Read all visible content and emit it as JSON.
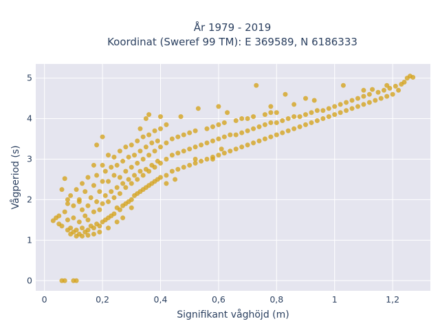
{
  "chart_data": {
    "type": "scatter",
    "title_line1": "År 1979 - 2019",
    "title_line2": "Koordinat (Sweref 99 TM): E 369589, N 6186333",
    "xlabel": "Signifikant våghöjd (m)",
    "ylabel": "Vågperiod (s)",
    "xlim": [
      -0.03,
      1.33
    ],
    "ylim": [
      -0.25,
      5.35
    ],
    "x_ticks": [
      {
        "value": 0,
        "label": "0"
      },
      {
        "value": 0.2,
        "label": "0,2"
      },
      {
        "value": 0.4,
        "label": "0,4"
      },
      {
        "value": 0.6,
        "label": "0,6"
      },
      {
        "value": 0.8,
        "label": "0,8"
      },
      {
        "value": 1,
        "label": "1"
      },
      {
        "value": 1.2,
        "label": "1,2"
      }
    ],
    "y_ticks": [
      {
        "value": 0,
        "label": "0"
      },
      {
        "value": 1,
        "label": "1"
      },
      {
        "value": 2,
        "label": "2"
      },
      {
        "value": 3,
        "label": "3"
      },
      {
        "value": 4,
        "label": "4"
      },
      {
        "value": 5,
        "label": "5"
      }
    ],
    "grid": true,
    "colors": {
      "background": "#e5e5ef",
      "grid": "#ffffff",
      "marker": "#d4a41f"
    },
    "series": [
      {
        "points": [
          [
            0.06,
            0.0
          ],
          [
            0.07,
            0.0
          ],
          [
            0.1,
            0.0
          ],
          [
            0.11,
            0.0
          ],
          [
            0.03,
            1.48
          ],
          [
            0.04,
            1.55
          ],
          [
            0.05,
            1.4
          ],
          [
            0.05,
            1.6
          ],
          [
            0.06,
            1.35
          ],
          [
            0.06,
            2.25
          ],
          [
            0.07,
            2.52
          ],
          [
            0.07,
            1.7
          ],
          [
            0.08,
            1.25
          ],
          [
            0.08,
            1.5
          ],
          [
            0.08,
            1.9
          ],
          [
            0.09,
            1.3
          ],
          [
            0.09,
            2.1
          ],
          [
            0.1,
            1.2
          ],
          [
            0.1,
            1.55
          ],
          [
            0.1,
            1.85
          ],
          [
            0.11,
            1.25
          ],
          [
            0.11,
            2.25
          ],
          [
            0.12,
            1.15
          ],
          [
            0.12,
            1.45
          ],
          [
            0.12,
            2.0
          ],
          [
            0.13,
            1.3
          ],
          [
            0.13,
            1.75
          ],
          [
            0.13,
            2.4
          ],
          [
            0.14,
            1.2
          ],
          [
            0.14,
            1.6
          ],
          [
            0.14,
            2.2
          ],
          [
            0.15,
            1.25
          ],
          [
            0.15,
            1.5
          ],
          [
            0.15,
            1.85
          ],
          [
            0.15,
            2.55
          ],
          [
            0.16,
            1.35
          ],
          [
            0.16,
            2.05
          ],
          [
            0.17,
            1.3
          ],
          [
            0.17,
            1.7
          ],
          [
            0.17,
            2.35
          ],
          [
            0.17,
            2.85
          ],
          [
            0.18,
            1.4
          ],
          [
            0.18,
            1.95
          ],
          [
            0.18,
            2.6
          ],
          [
            0.19,
            1.35
          ],
          [
            0.19,
            1.75
          ],
          [
            0.19,
            2.2
          ],
          [
            0.2,
            1.45
          ],
          [
            0.2,
            1.9
          ],
          [
            0.2,
            2.45
          ],
          [
            0.2,
            2.85
          ],
          [
            0.21,
            1.5
          ],
          [
            0.21,
            2.1
          ],
          [
            0.21,
            2.7
          ],
          [
            0.22,
            1.55
          ],
          [
            0.22,
            1.95
          ],
          [
            0.22,
            2.45
          ],
          [
            0.22,
            3.1
          ],
          [
            0.23,
            1.6
          ],
          [
            0.23,
            2.2
          ],
          [
            0.23,
            2.8
          ],
          [
            0.24,
            1.65
          ],
          [
            0.24,
            2.05
          ],
          [
            0.24,
            2.6
          ],
          [
            0.24,
            3.05
          ],
          [
            0.25,
            1.8
          ],
          [
            0.25,
            2.3
          ],
          [
            0.25,
            2.85
          ],
          [
            0.26,
            1.75
          ],
          [
            0.26,
            2.15
          ],
          [
            0.26,
            2.55
          ],
          [
            0.26,
            3.2
          ],
          [
            0.27,
            1.85
          ],
          [
            0.27,
            2.4
          ],
          [
            0.27,
            2.95
          ],
          [
            0.28,
            1.9
          ],
          [
            0.28,
            2.3
          ],
          [
            0.28,
            2.7
          ],
          [
            0.28,
            3.3
          ],
          [
            0.29,
            1.95
          ],
          [
            0.29,
            2.5
          ],
          [
            0.29,
            3.05
          ],
          [
            0.3,
            2.0
          ],
          [
            0.3,
            2.4
          ],
          [
            0.3,
            2.8
          ],
          [
            0.3,
            3.35
          ],
          [
            0.31,
            2.1
          ],
          [
            0.31,
            2.6
          ],
          [
            0.31,
            3.1
          ],
          [
            0.32,
            2.15
          ],
          [
            0.32,
            2.5
          ],
          [
            0.32,
            2.9
          ],
          [
            0.32,
            3.45
          ],
          [
            0.33,
            2.2
          ],
          [
            0.33,
            2.7
          ],
          [
            0.33,
            3.2
          ],
          [
            0.34,
            2.25
          ],
          [
            0.34,
            2.6
          ],
          [
            0.34,
            3.0
          ],
          [
            0.34,
            3.55
          ],
          [
            0.35,
            2.3
          ],
          [
            0.35,
            2.75
          ],
          [
            0.35,
            3.3
          ],
          [
            0.36,
            2.35
          ],
          [
            0.36,
            2.7
          ],
          [
            0.36,
            3.1
          ],
          [
            0.36,
            3.6
          ],
          [
            0.37,
            2.4
          ],
          [
            0.37,
            2.85
          ],
          [
            0.37,
            3.4
          ],
          [
            0.38,
            2.45
          ],
          [
            0.38,
            2.8
          ],
          [
            0.38,
            3.2
          ],
          [
            0.38,
            3.7
          ],
          [
            0.39,
            2.5
          ],
          [
            0.39,
            2.95
          ],
          [
            0.39,
            3.45
          ],
          [
            0.4,
            2.55
          ],
          [
            0.4,
            2.9
          ],
          [
            0.4,
            3.3
          ],
          [
            0.4,
            3.75
          ],
          [
            0.42,
            2.6
          ],
          [
            0.42,
            3.0
          ],
          [
            0.42,
            3.4
          ],
          [
            0.42,
            3.85
          ],
          [
            0.44,
            2.7
          ],
          [
            0.44,
            3.1
          ],
          [
            0.44,
            3.5
          ],
          [
            0.46,
            2.75
          ],
          [
            0.46,
            3.15
          ],
          [
            0.46,
            3.55
          ],
          [
            0.48,
            2.8
          ],
          [
            0.48,
            3.2
          ],
          [
            0.48,
            3.6
          ],
          [
            0.5,
            2.85
          ],
          [
            0.5,
            3.25
          ],
          [
            0.5,
            3.65
          ],
          [
            0.52,
            2.9
          ],
          [
            0.52,
            3.3
          ],
          [
            0.52,
            3.7
          ],
          [
            0.54,
            2.95
          ],
          [
            0.54,
            3.35
          ],
          [
            0.56,
            3.0
          ],
          [
            0.56,
            3.4
          ],
          [
            0.56,
            3.75
          ],
          [
            0.58,
            3.05
          ],
          [
            0.58,
            3.45
          ],
          [
            0.58,
            3.8
          ],
          [
            0.6,
            3.1
          ],
          [
            0.6,
            3.5
          ],
          [
            0.6,
            3.85
          ],
          [
            0.62,
            3.15
          ],
          [
            0.62,
            3.55
          ],
          [
            0.62,
            3.9
          ],
          [
            0.64,
            3.2
          ],
          [
            0.64,
            3.6
          ],
          [
            0.66,
            3.25
          ],
          [
            0.66,
            3.6
          ],
          [
            0.66,
            3.95
          ],
          [
            0.68,
            3.3
          ],
          [
            0.68,
            3.65
          ],
          [
            0.68,
            4.0
          ],
          [
            0.7,
            3.35
          ],
          [
            0.7,
            3.7
          ],
          [
            0.7,
            4.0
          ],
          [
            0.72,
            3.4
          ],
          [
            0.72,
            3.75
          ],
          [
            0.72,
            4.05
          ],
          [
            0.74,
            3.45
          ],
          [
            0.74,
            3.8
          ],
          [
            0.76,
            3.5
          ],
          [
            0.76,
            3.85
          ],
          [
            0.76,
            4.1
          ],
          [
            0.78,
            3.55
          ],
          [
            0.78,
            3.9
          ],
          [
            0.78,
            4.15
          ],
          [
            0.8,
            3.6
          ],
          [
            0.8,
            3.9
          ],
          [
            0.8,
            4.15
          ],
          [
            0.82,
            3.65
          ],
          [
            0.82,
            3.95
          ],
          [
            0.84,
            3.7
          ],
          [
            0.84,
            4.0
          ],
          [
            0.86,
            3.75
          ],
          [
            0.86,
            4.05
          ],
          [
            0.88,
            3.8
          ],
          [
            0.88,
            4.05
          ],
          [
            0.9,
            3.85
          ],
          [
            0.9,
            4.1
          ],
          [
            0.92,
            3.9
          ],
          [
            0.92,
            4.15
          ],
          [
            0.94,
            3.95
          ],
          [
            0.94,
            4.2
          ],
          [
            0.96,
            4.0
          ],
          [
            0.96,
            4.2
          ],
          [
            0.98,
            4.05
          ],
          [
            0.98,
            4.25
          ],
          [
            1.0,
            4.1
          ],
          [
            1.0,
            4.3
          ],
          [
            1.02,
            4.15
          ],
          [
            1.02,
            4.35
          ],
          [
            1.04,
            4.2
          ],
          [
            1.04,
            4.4
          ],
          [
            1.06,
            4.25
          ],
          [
            1.06,
            4.45
          ],
          [
            1.08,
            4.3
          ],
          [
            1.08,
            4.5
          ],
          [
            1.1,
            4.35
          ],
          [
            1.1,
            4.55
          ],
          [
            1.12,
            4.4
          ],
          [
            1.12,
            4.6
          ],
          [
            1.14,
            4.45
          ],
          [
            1.15,
            4.65
          ],
          [
            1.16,
            4.5
          ],
          [
            1.17,
            4.7
          ],
          [
            1.18,
            4.55
          ],
          [
            1.19,
            4.75
          ],
          [
            1.2,
            4.6
          ],
          [
            1.21,
            4.8
          ],
          [
            1.22,
            4.7
          ],
          [
            1.23,
            4.85
          ],
          [
            1.24,
            4.9
          ],
          [
            1.25,
            5.0
          ],
          [
            1.26,
            5.05
          ],
          [
            1.27,
            5.02
          ],
          [
            0.18,
            3.35
          ],
          [
            0.2,
            3.55
          ],
          [
            0.33,
            3.75
          ],
          [
            0.36,
            4.1
          ],
          [
            0.35,
            4.0
          ],
          [
            0.4,
            4.05
          ],
          [
            0.47,
            4.05
          ],
          [
            0.53,
            4.25
          ],
          [
            0.6,
            4.3
          ],
          [
            0.63,
            4.15
          ],
          [
            0.73,
            4.82
          ],
          [
            0.78,
            4.3
          ],
          [
            0.83,
            4.6
          ],
          [
            0.86,
            4.35
          ],
          [
            0.9,
            4.5
          ],
          [
            0.93,
            4.45
          ],
          [
            1.03,
            4.82
          ],
          [
            1.1,
            4.7
          ],
          [
            1.13,
            4.72
          ],
          [
            1.18,
            4.82
          ],
          [
            0.12,
            1.95
          ],
          [
            0.08,
            2.0
          ],
          [
            0.45,
            2.5
          ],
          [
            0.42,
            2.4
          ],
          [
            0.52,
            3.0
          ],
          [
            0.58,
            3.0
          ],
          [
            0.61,
            3.25
          ],
          [
            0.09,
            1.15
          ],
          [
            0.11,
            1.1
          ],
          [
            0.13,
            1.1
          ],
          [
            0.15,
            1.12
          ],
          [
            0.17,
            1.15
          ],
          [
            0.19,
            1.2
          ],
          [
            0.22,
            1.3
          ],
          [
            0.25,
            1.45
          ],
          [
            0.27,
            1.55
          ],
          [
            0.3,
            1.8
          ]
        ]
      }
    ]
  }
}
